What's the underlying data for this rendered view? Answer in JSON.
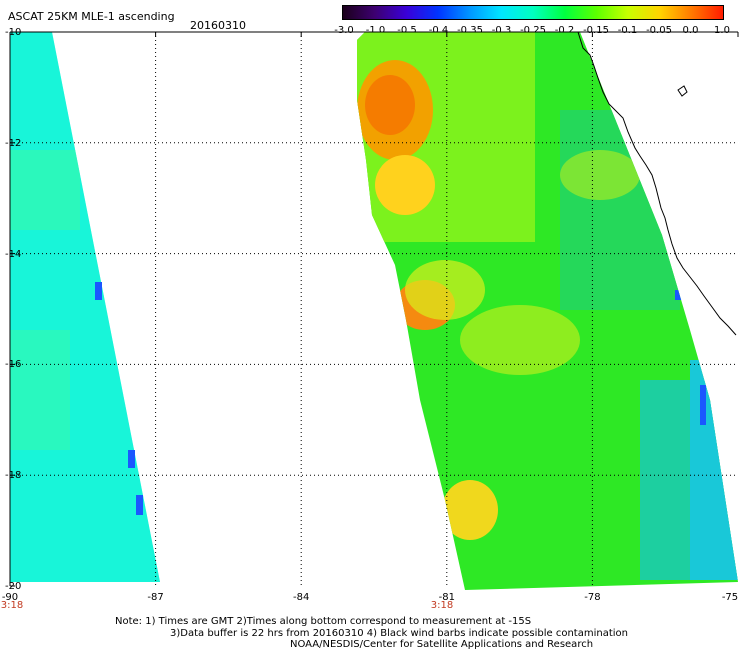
{
  "header": {
    "title": "ASCAT 25KM MLE-1 ascending",
    "date": "20160310"
  },
  "colorbar": {
    "labels": [
      "-3.0",
      "-1.0",
      "-0.5",
      "-0.4",
      "-0.35",
      "-0.3",
      "-0.25",
      "-0.2",
      "-0.15",
      "-0.1",
      "-0.05",
      "0.0",
      "1.0"
    ],
    "colors": [
      "#1b001b",
      "#3d0070",
      "#3a00d8",
      "#0034ff",
      "#0096ff",
      "#00e6ff",
      "#00ffc0",
      "#00ff40",
      "#5cff00",
      "#c8ff00",
      "#ffd400",
      "#ff7a00",
      "#ff1c00"
    ]
  },
  "map": {
    "lat_labels": [
      "-10",
      "-12",
      "-14",
      "-16",
      "-18",
      "-20"
    ],
    "lon_labels": [
      "-90",
      "-87",
      "-84",
      "-81",
      "-78",
      "-75"
    ],
    "time_labels": [
      "3:18",
      "3:18"
    ],
    "lat_range": [
      -20,
      -10
    ],
    "lon_range": [
      -90,
      -75
    ],
    "grid": true
  },
  "footer": {
    "line1": "Note: 1) Times are GMT 2)Times along bottom correspond to measurement at -15S",
    "line2": "3)Data buffer is 22 hrs from 20160310 4) Black wind barbs indicate possible contamination",
    "line3": "NOAA/NESDIS/Center for Satellite Applications and Research"
  }
}
